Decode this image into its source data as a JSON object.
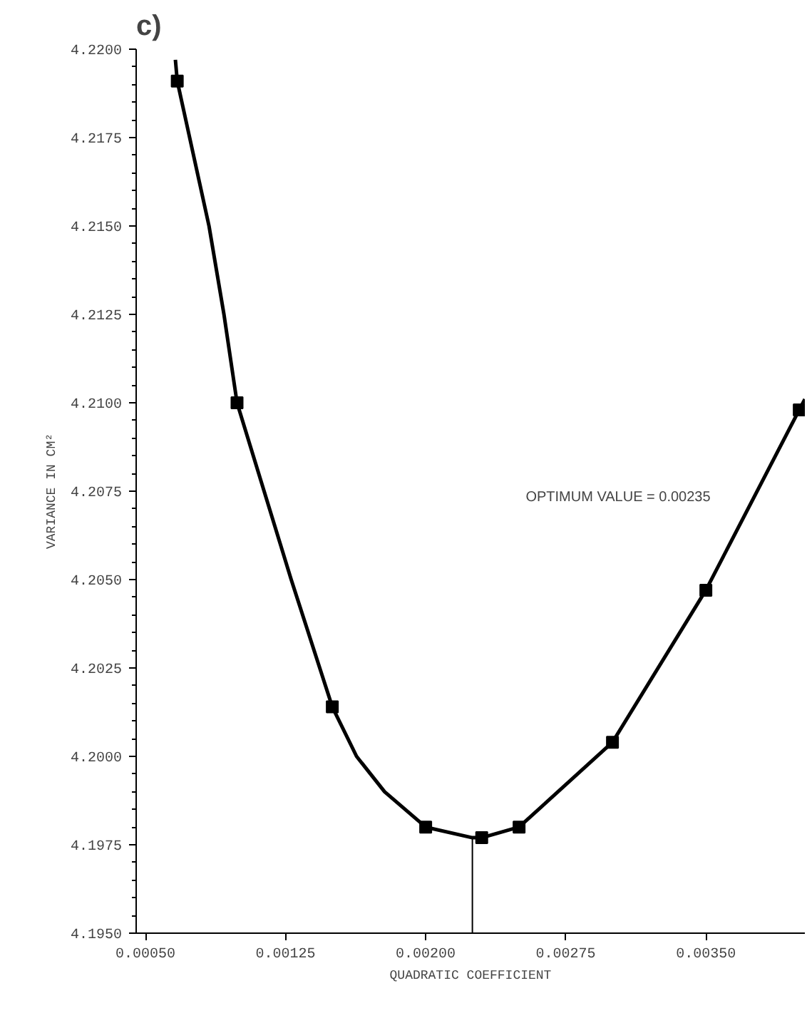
{
  "chart_data": {
    "type": "line",
    "title": "c)",
    "xlabel": "QUADRATIC COEFFICIENT",
    "ylabel": "VARIANCE IN CM²",
    "xlim": [
      0.00045,
      0.00403
    ],
    "xticks": [
      {
        "value": 0.0005,
        "label": "0.00050"
      },
      {
        "value": 0.00125,
        "label": "0.00125"
      },
      {
        "value": 0.002,
        "label": "0.00200"
      },
      {
        "value": 0.00275,
        "label": "0.00275"
      },
      {
        "value": 0.0035,
        "label": "0.00350"
      }
    ],
    "ylim": [
      4.195,
      4.22
    ],
    "yticks": [
      {
        "value": 4.195,
        "label": "4.1950"
      },
      {
        "value": 4.1975,
        "label": "4.1975"
      },
      {
        "value": 4.2,
        "label": "4.2000"
      },
      {
        "value": 4.2025,
        "label": "4.2025"
      },
      {
        "value": 4.205,
        "label": "4.2050"
      },
      {
        "value": 4.2075,
        "label": "4.2075"
      },
      {
        "value": 4.21,
        "label": "4.2100"
      },
      {
        "value": 4.2125,
        "label": "4.2125"
      },
      {
        "value": 4.215,
        "label": "4.2150"
      },
      {
        "value": 4.2175,
        "label": "4.2175"
      },
      {
        "value": 4.22,
        "label": "4.2200"
      }
    ],
    "grid": false,
    "series": [
      {
        "marker": "none",
        "color": "#000000",
        "x": [
          0.00066,
          0.00067,
          0.00084,
          0.00092,
          0.00099,
          0.00128,
          0.0015,
          0.00163,
          0.00178,
          0.002,
          0.00225,
          0.0023,
          0.0025,
          0.003,
          0.0035,
          0.004,
          0.00403
        ],
        "values": [
          4.2197,
          4.2191,
          4.215,
          4.2125,
          4.21,
          4.205,
          4.2014,
          4.2,
          4.199,
          4.198,
          4.1977,
          4.1977,
          4.198,
          4.2004,
          4.2047,
          4.2098,
          4.2101
        ]
      },
      {
        "type": "scatter",
        "marker": "square",
        "color": "#000000",
        "x": [
          0.00067,
          0.00099,
          0.0015,
          0.002,
          0.0023,
          0.0025,
          0.003,
          0.0035,
          0.004
        ],
        "values": [
          4.2191,
          4.21,
          4.2014,
          4.198,
          4.1977,
          4.198,
          4.2004,
          4.2047,
          4.2098
        ]
      },
      {
        "type": "line",
        "marker": "none",
        "color": "#000000",
        "x": [
          0.00225,
          0.00225
        ],
        "values": [
          4.195,
          4.1977
        ]
      }
    ],
    "annotations": [
      "OPTIMUM VALUE = 0.00235"
    ]
  }
}
